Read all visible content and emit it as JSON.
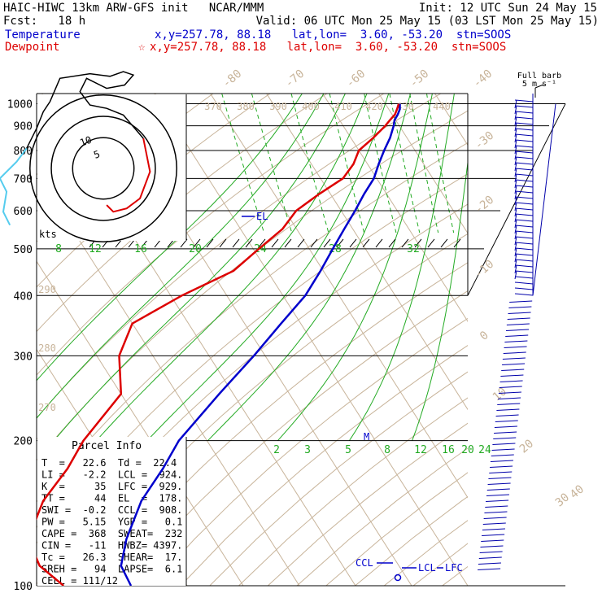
{
  "header": {
    "title_left": "HAIC-HIWC 13km ARW-GFS init   NCAR/MMM",
    "init": "Init: 12 UTC Sun 24 May 15",
    "fcst": "Fcst:   18 h",
    "valid": "Valid: 06 UTC Mon 25 May 15 (03 LST Mon 25 May 15)",
    "temp_label": "Temperature",
    "temp_info": "x,y=257.78, 88.18   lat,lon=  3.60, -53.20  stn=SOOS",
    "dew_label": "Dewpoint",
    "dew_star": "☆",
    "dew_info": "x,y=257.78, 88.18   lat,lon=  3.60, -53.20  stn=SOOS",
    "temp_color": "#0000cc",
    "dew_color": "#dd0000"
  },
  "barb_key": {
    "line1": "Full barb",
    "line2": "5 m s⁻¹"
  },
  "hodo_kts": "kts",
  "parcel": {
    "title": "Parcel Info",
    "rows": [
      "T  =   22.6  Td =  22.4",
      "LI =   -2.2  LCL =  924.",
      "K  =     35  LFC =  929.",
      "TT =     44  EL  =  178.",
      "SWI =  -0.2  CCL =  908.",
      "PW =   5.15  YGP =   0.1",
      "CAPE =  368  SWEAT=  232",
      "CIN =   -11  HWBZ= 4397.",
      "Tc =   26.3  SHEAR=  17.",
      "SREH =   94  LAPSE=  6.1",
      "CELL = 111/12"
    ]
  },
  "chart_data": {
    "type": "skew-t",
    "pressure_ticks": [
      100,
      200,
      300,
      400,
      500,
      600,
      700,
      800,
      900,
      1000
    ],
    "temp_ticks_top": [
      "-80",
      "-70",
      "-60",
      "-50",
      "-40"
    ],
    "temp_ticks_right": [
      "-30",
      "-20",
      "-10",
      "0",
      "10",
      "20",
      "30",
      "40"
    ],
    "theta_labels_top": [
      "370",
      "380",
      "390",
      "400",
      "410",
      "420",
      "430",
      "440"
    ],
    "theta_labels_left": [
      "290",
      "280",
      "270"
    ],
    "moist_adiabat_labels": [
      "8",
      "12",
      "16",
      "20",
      "24",
      "28",
      "32"
    ],
    "mixing_ratio_labels": [
      "2",
      "3",
      "5",
      "8",
      "12",
      "16",
      "20",
      "24"
    ],
    "level_labels": {
      "el": "EL",
      "ccl": "CCL",
      "lcl": "LCL",
      "lfc": "LFC",
      "melt": "M"
    },
    "temperature": {
      "name": "Temperature",
      "p": [
        1000,
        975,
        950,
        925,
        900,
        850,
        800,
        750,
        700,
        650,
        600,
        550,
        500,
        450,
        400,
        350,
        300,
        250,
        200,
        175,
        150,
        125,
        110,
        100
      ],
      "t": [
        22.6,
        22.0,
        21.0,
        19.8,
        19.0,
        17.0,
        14.5,
        12.0,
        9.5,
        6.0,
        2.5,
        -1.5,
        -5.8,
        -10.5,
        -16.0,
        -23.5,
        -32.0,
        -42.5,
        -55.0,
        -61.0,
        -68.5,
        -75.5,
        -79.5,
        -80.0
      ],
      "color": "#0000cc"
    },
    "dewpoint": {
      "name": "Dewpoint",
      "p": [
        1000,
        975,
        950,
        925,
        900,
        850,
        800,
        750,
        700,
        650,
        600,
        550,
        500,
        450,
        400,
        350,
        300,
        250,
        200,
        175,
        150,
        125,
        110,
        100
      ],
      "td": [
        22.4,
        21.5,
        20.5,
        19.0,
        17.5,
        14.0,
        10.0,
        7.5,
        4.0,
        -2.0,
        -8.0,
        -12.5,
        -19.0,
        -26.0,
        -38.0,
        -50.0,
        -56.0,
        -60.0,
        -72.0,
        -78.0,
        -86.0,
        -93.0,
        -94.0,
        -92.0
      ],
      "color": "#dd0000"
    },
    "hodograph": {
      "rings_label": [
        "5",
        "10"
      ],
      "u": [
        0.5,
        1.5,
        3.5,
        5.5,
        7,
        6,
        3,
        0.5,
        -2,
        -3.5,
        -2.5,
        0.5,
        3.2,
        4.5,
        3.0,
        1.0,
        -2.0,
        -6.5,
        -8.0,
        -9.0,
        -10.0,
        -11.5,
        -13.0,
        -15.5,
        -14.5,
        -15,
        -14
      ],
      "v": [
        -5.5,
        -6.5,
        -6.0,
        -4.5,
        -0.5,
        4.5,
        8.0,
        9.0,
        9.5,
        11.5,
        13.5,
        12.0,
        12.5,
        14.0,
        14.5,
        13.8,
        14.2,
        13.5,
        10.0,
        8.5,
        6.0,
        3.0,
        1.0,
        -1.5,
        -3.5,
        -6.5,
        -8.5
      ]
    }
  }
}
